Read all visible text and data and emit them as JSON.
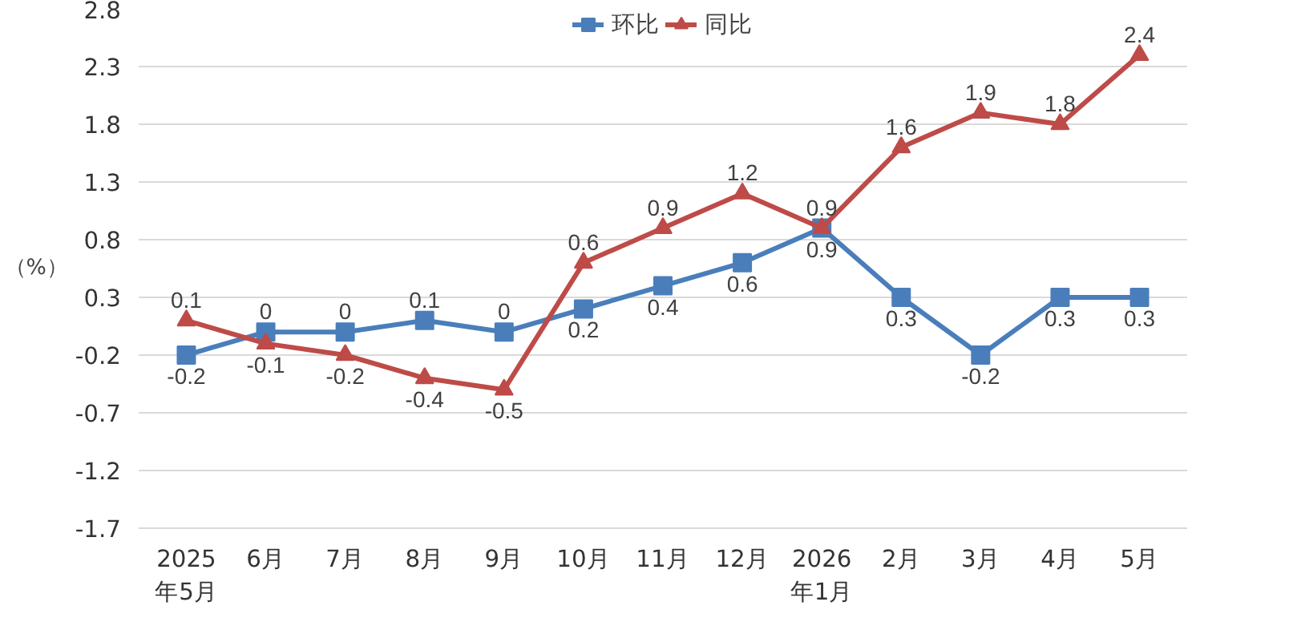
{
  "chart_data": {
    "type": "line",
    "ylabel": "（%）",
    "categories": [
      "2025\n年5月",
      "6月",
      "7月",
      "8月",
      "9月",
      "10月",
      "11月",
      "12月",
      "2026\n年1月",
      "2月",
      "3月",
      "4月",
      "5月"
    ],
    "series": [
      {
        "name": "环比",
        "color": "#4a7ebb",
        "marker": "square",
        "values": [
          -0.2,
          0,
          0,
          0.1,
          0,
          0.2,
          0.4,
          0.6,
          0.9,
          0.3,
          -0.2,
          0.3,
          0.3
        ]
      },
      {
        "name": "同比",
        "color": "#be4b48",
        "marker": "triangle",
        "values": [
          0.1,
          -0.1,
          -0.2,
          -0.4,
          -0.5,
          0.6,
          0.9,
          1.2,
          0.9,
          1.6,
          1.9,
          1.8,
          2.4
        ]
      }
    ],
    "ylim": [
      -1.7,
      2.8
    ],
    "yticks": [
      -1.7,
      -1.2,
      -0.7,
      -0.2,
      0.3,
      0.8,
      1.3,
      1.8,
      2.3,
      2.8
    ],
    "grid": "y",
    "legend": "top",
    "data_labels": true,
    "line_style": "solid"
  }
}
